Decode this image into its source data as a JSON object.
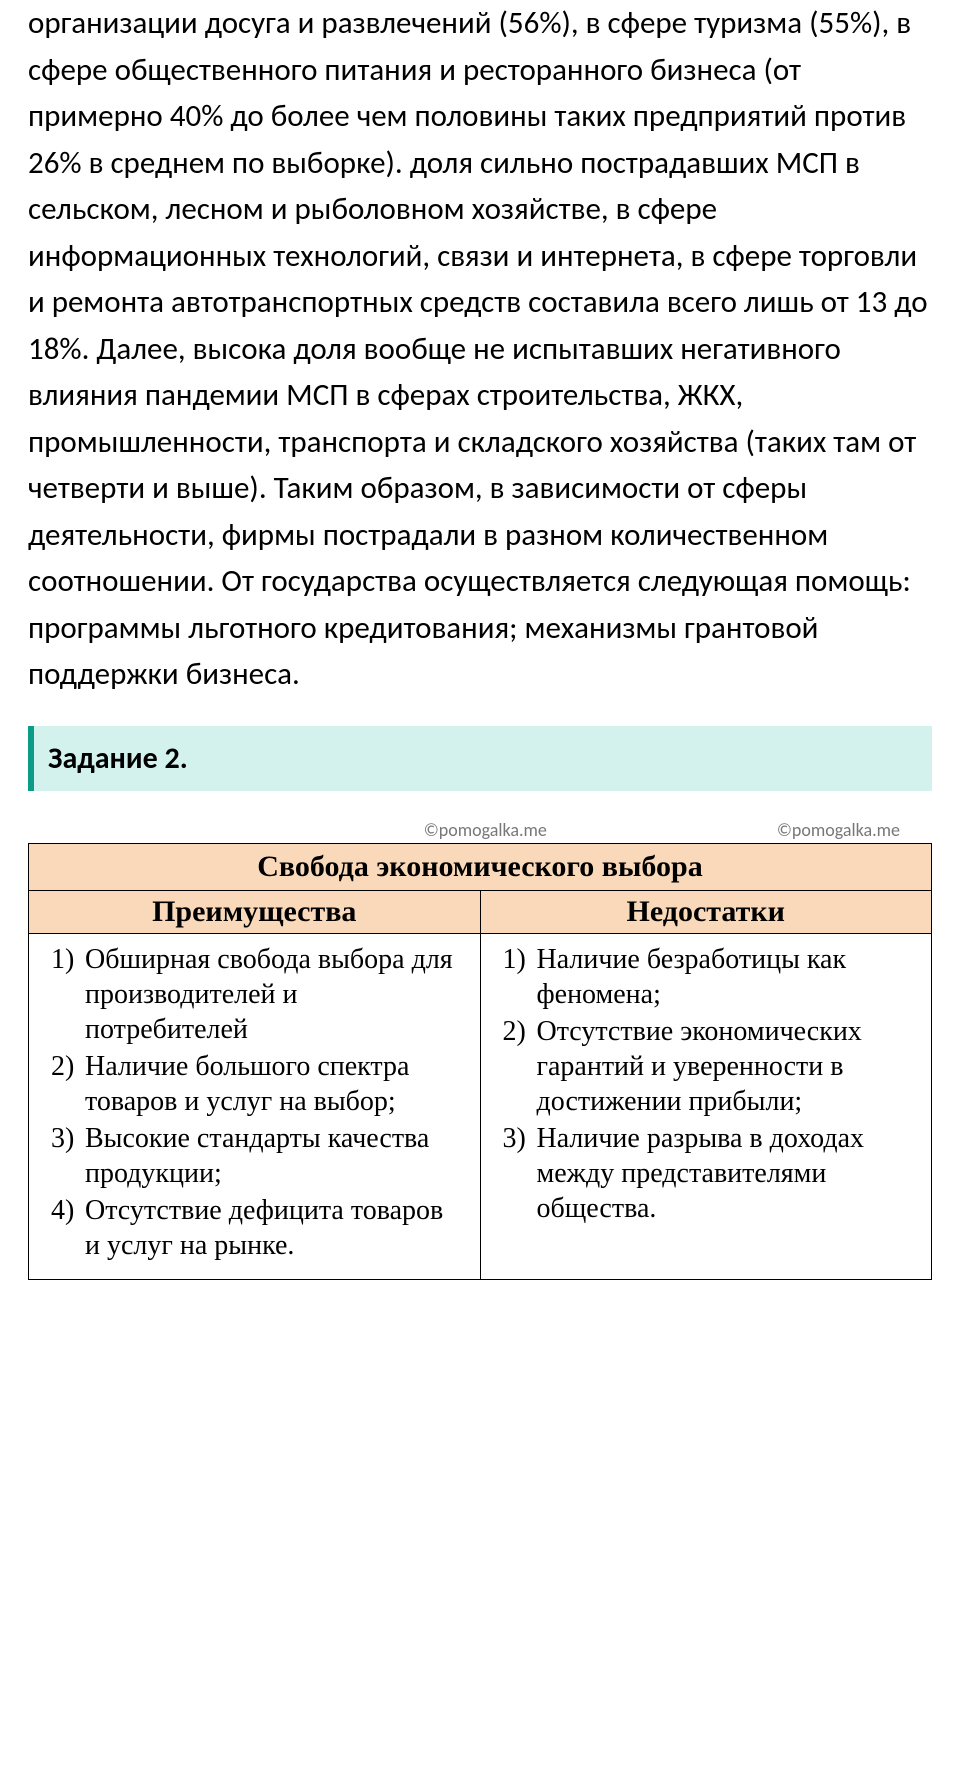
{
  "body_paragraph": "организации досуга и развлечений (56%), в сфере туризма (55%), в сфере общественного питания и ресторанного бизнеса (от примерно 40% до более чем половины таких предприятий против 26% в среднем по выборке). доля сильно пострадавших МСП в сельском, лесном и рыболовном хозяйстве, в сфере информационных технологий, связи и интернета, в сфере торговли и ремонта автотранспортных средств составила всего лишь от 13 до 18%. Далее, высока доля вообще не испытавших негативного влияния пандемии МСП в сферах строительства, ЖКХ, промышленности, транспорта и складского хозяйства (таких там от четверти и выше). Таким образом, в зависимости от сферы деятельности, фирмы пострадали в разном количественном соотношении. От государства осуществляется следующая помощь: программы льготного кредитования; механизмы грантовой поддержки бизнеса.",
  "task_banner": "Задание 2.",
  "watermarks": {
    "left": "©pomogalka.me",
    "right": "©pomogalka.me"
  },
  "table": {
    "type": "table",
    "title": "Свобода экономического выбора",
    "columns": [
      "Преимущества",
      "Недостатки"
    ],
    "title_bg": "#f9d9b9",
    "header_bg": "#f9d9b9",
    "border_color": "#000000",
    "font_family": "Times New Roman",
    "title_fontsize": 30,
    "header_fontsize": 30,
    "body_fontsize": 28,
    "advantages": [
      "Обширная свобода выбора для производителей и потребителей",
      "Наличие большого спектра товаров и услуг на выбор;",
      "Высокие стандарты качества продукции;",
      "Отсутствие дефицита товаров и услуг на рынке."
    ],
    "disadvantages": [
      "Наличие безработицы как феномена;",
      "Отсутствие экономических гарантий и уверенности в достижении прибыли;",
      "Наличие разрыва в доходах между представителями общества."
    ]
  },
  "colors": {
    "text": "#000000",
    "background": "#ffffff",
    "banner_bg": "#d3f2ee",
    "banner_border": "#0a9c86",
    "watermark": "#777777"
  }
}
